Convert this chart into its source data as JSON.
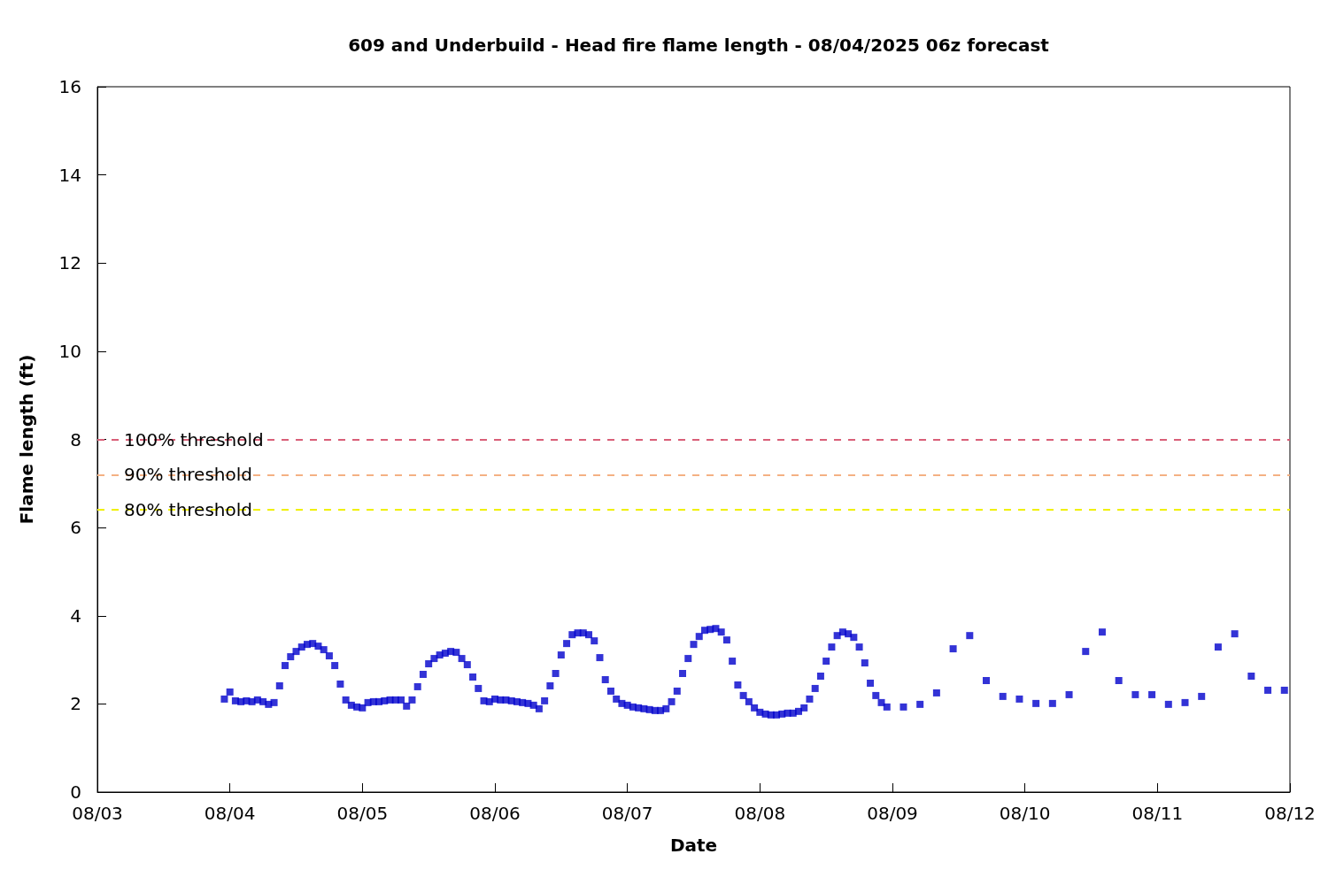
{
  "chart_data": {
    "type": "scatter",
    "title": "609 and Underbuild - Head fire flame length - 08/04/2025 06z forecast",
    "xlabel": "Date",
    "ylabel": "Flame length (ft)",
    "x": [
      "2025-08-03T23:00",
      "2025-08-04T00:00",
      "2025-08-04T01:00",
      "2025-08-04T02:00",
      "2025-08-04T03:00",
      "2025-08-04T04:00",
      "2025-08-04T05:00",
      "2025-08-04T06:00",
      "2025-08-04T07:00",
      "2025-08-04T08:00",
      "2025-08-04T09:00",
      "2025-08-04T10:00",
      "2025-08-04T11:00",
      "2025-08-04T12:00",
      "2025-08-04T13:00",
      "2025-08-04T14:00",
      "2025-08-04T15:00",
      "2025-08-04T16:00",
      "2025-08-04T17:00",
      "2025-08-04T18:00",
      "2025-08-04T19:00",
      "2025-08-04T20:00",
      "2025-08-04T21:00",
      "2025-08-04T22:00",
      "2025-08-04T23:00",
      "2025-08-05T00:00",
      "2025-08-05T01:00",
      "2025-08-05T02:00",
      "2025-08-05T03:00",
      "2025-08-05T04:00",
      "2025-08-05T05:00",
      "2025-08-05T06:00",
      "2025-08-05T07:00",
      "2025-08-05T08:00",
      "2025-08-05T09:00",
      "2025-08-05T10:00",
      "2025-08-05T11:00",
      "2025-08-05T12:00",
      "2025-08-05T13:00",
      "2025-08-05T14:00",
      "2025-08-05T15:00",
      "2025-08-05T16:00",
      "2025-08-05T17:00",
      "2025-08-05T18:00",
      "2025-08-05T19:00",
      "2025-08-05T20:00",
      "2025-08-05T21:00",
      "2025-08-05T22:00",
      "2025-08-05T23:00",
      "2025-08-06T00:00",
      "2025-08-06T01:00",
      "2025-08-06T02:00",
      "2025-08-06T03:00",
      "2025-08-06T04:00",
      "2025-08-06T05:00",
      "2025-08-06T06:00",
      "2025-08-06T07:00",
      "2025-08-06T08:00",
      "2025-08-06T09:00",
      "2025-08-06T10:00",
      "2025-08-06T11:00",
      "2025-08-06T12:00",
      "2025-08-06T13:00",
      "2025-08-06T14:00",
      "2025-08-06T15:00",
      "2025-08-06T16:00",
      "2025-08-06T17:00",
      "2025-08-06T18:00",
      "2025-08-06T19:00",
      "2025-08-06T20:00",
      "2025-08-06T21:00",
      "2025-08-06T22:00",
      "2025-08-06T23:00",
      "2025-08-07T00:00",
      "2025-08-07T01:00",
      "2025-08-07T02:00",
      "2025-08-07T03:00",
      "2025-08-07T04:00",
      "2025-08-07T05:00",
      "2025-08-07T06:00",
      "2025-08-07T07:00",
      "2025-08-07T08:00",
      "2025-08-07T09:00",
      "2025-08-07T10:00",
      "2025-08-07T11:00",
      "2025-08-07T12:00",
      "2025-08-07T13:00",
      "2025-08-07T14:00",
      "2025-08-07T15:00",
      "2025-08-07T16:00",
      "2025-08-07T17:00",
      "2025-08-07T18:00",
      "2025-08-07T19:00",
      "2025-08-07T20:00",
      "2025-08-07T21:00",
      "2025-08-07T22:00",
      "2025-08-07T23:00",
      "2025-08-08T00:00",
      "2025-08-08T01:00",
      "2025-08-08T02:00",
      "2025-08-08T03:00",
      "2025-08-08T04:00",
      "2025-08-08T05:00",
      "2025-08-08T06:00",
      "2025-08-08T07:00",
      "2025-08-08T08:00",
      "2025-08-08T09:00",
      "2025-08-08T10:00",
      "2025-08-08T11:00",
      "2025-08-08T12:00",
      "2025-08-08T13:00",
      "2025-08-08T14:00",
      "2025-08-08T15:00",
      "2025-08-08T16:00",
      "2025-08-08T17:00",
      "2025-08-08T18:00",
      "2025-08-08T19:00",
      "2025-08-08T20:00",
      "2025-08-08T21:00",
      "2025-08-08T22:00",
      "2025-08-08T23:00",
      "2025-08-09T02:00",
      "2025-08-09T05:00",
      "2025-08-09T08:00",
      "2025-08-09T11:00",
      "2025-08-09T14:00",
      "2025-08-09T17:00",
      "2025-08-09T20:00",
      "2025-08-09T23:00",
      "2025-08-10T02:00",
      "2025-08-10T05:00",
      "2025-08-10T08:00",
      "2025-08-10T11:00",
      "2025-08-10T14:00",
      "2025-08-10T17:00",
      "2025-08-10T20:00",
      "2025-08-10T23:00",
      "2025-08-11T02:00",
      "2025-08-11T05:00",
      "2025-08-11T08:00",
      "2025-08-11T11:00",
      "2025-08-11T14:00",
      "2025-08-11T17:00",
      "2025-08-11T20:00",
      "2025-08-11T23:00"
    ],
    "series": [
      {
        "color": "#0000cc",
        "values": [
          2.11,
          2.27,
          2.07,
          2.05,
          2.07,
          2.05,
          2.09,
          2.05,
          1.99,
          2.03,
          2.41,
          2.87,
          3.07,
          3.19,
          3.29,
          3.35,
          3.37,
          3.31,
          3.23,
          3.09,
          2.87,
          2.45,
          2.09,
          1.97,
          1.93,
          1.91,
          2.03,
          2.05,
          2.05,
          2.07,
          2.09,
          2.09,
          2.09,
          1.95,
          2.09,
          2.39,
          2.67,
          2.91,
          3.03,
          3.11,
          3.15,
          3.19,
          3.17,
          3.03,
          2.89,
          2.61,
          2.35,
          2.07,
          2.05,
          2.11,
          2.09,
          2.09,
          2.07,
          2.05,
          2.03,
          2.01,
          1.97,
          1.89,
          2.07,
          2.41,
          2.69,
          3.11,
          3.37,
          3.57,
          3.61,
          3.61,
          3.57,
          3.43,
          3.05,
          2.55,
          2.29,
          2.11,
          2.01,
          1.97,
          1.93,
          1.91,
          1.89,
          1.87,
          1.85,
          1.85,
          1.89,
          2.05,
          2.29,
          2.69,
          3.03,
          3.35,
          3.53,
          3.67,
          3.69,
          3.71,
          3.63,
          3.45,
          2.97,
          2.43,
          2.19,
          2.05,
          1.91,
          1.81,
          1.77,
          1.75,
          1.75,
          1.77,
          1.79,
          1.79,
          1.83,
          1.91,
          2.11,
          2.35,
          2.63,
          2.97,
          3.29,
          3.55,
          3.63,
          3.59,
          3.51,
          3.29,
          2.93,
          2.47,
          2.19,
          2.03,
          1.93,
          1.93,
          1.99,
          2.25,
          3.25,
          3.55,
          2.53,
          2.17,
          2.11,
          2.01,
          2.01,
          2.21,
          3.19,
          3.63,
          2.53,
          2.21,
          2.21,
          1.99,
          2.03,
          2.17,
          3.29,
          3.59,
          2.63,
          2.31,
          2.31
        ]
      }
    ],
    "marker": "square",
    "xlim": [
      "2025-08-03",
      "2025-08-12"
    ],
    "xticks": [
      {
        "value": "2025-08-03",
        "label": "08/03"
      },
      {
        "value": "2025-08-04",
        "label": "08/04"
      },
      {
        "value": "2025-08-05",
        "label": "08/05"
      },
      {
        "value": "2025-08-06",
        "label": "08/06"
      },
      {
        "value": "2025-08-07",
        "label": "08/07"
      },
      {
        "value": "2025-08-08",
        "label": "08/08"
      },
      {
        "value": "2025-08-09",
        "label": "08/09"
      },
      {
        "value": "2025-08-10",
        "label": "08/10"
      },
      {
        "value": "2025-08-11",
        "label": "08/11"
      },
      {
        "value": "2025-08-12",
        "label": "08/12"
      }
    ],
    "ylim": [
      0,
      16
    ],
    "yticks": [
      0,
      2,
      4,
      6,
      8,
      10,
      12,
      14,
      16
    ],
    "grid": false,
    "ref_lines": [
      {
        "axis": "y",
        "value": 8,
        "label": "100% threshold",
        "color": "#d95f78",
        "line_style": "dashed"
      },
      {
        "axis": "y",
        "value": 7.2,
        "label": "90% threshold",
        "color": "#f4b183",
        "line_style": "dashed"
      },
      {
        "axis": "y",
        "value": 6.4,
        "label": "80% threshold",
        "color": "#f0f000",
        "line_style": "dashed"
      }
    ]
  }
}
